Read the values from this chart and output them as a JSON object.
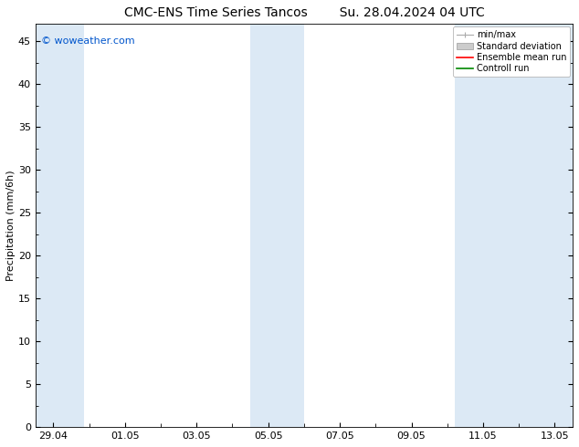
{
  "title_left": "CMC-ENS Time Series Tancos",
  "title_right": "Su. 28.04.2024 04 UTC",
  "ylabel": "Precipitation (mm/6h)",
  "watermark": "© woweather.com",
  "watermark_color": "#0055cc",
  "background_color": "#ffffff",
  "plot_bg_color": "#ffffff",
  "ylim": [
    0,
    47
  ],
  "yticks": [
    0,
    5,
    10,
    15,
    20,
    25,
    30,
    35,
    40,
    45
  ],
  "xtick_labels": [
    "29.04",
    "01.05",
    "03.05",
    "05.05",
    "07.05",
    "09.05",
    "11.05",
    "13.05"
  ],
  "xtick_positions": [
    0,
    2,
    4,
    6,
    8,
    10,
    12,
    14
  ],
  "xlim": [
    -0.5,
    14.5
  ],
  "shaded_bands": [
    {
      "x_start": -0.5,
      "x_end": 0.85,
      "color": "#dce9f5"
    },
    {
      "x_start": 5.5,
      "x_end": 7.0,
      "color": "#dce9f5"
    },
    {
      "x_start": 11.2,
      "x_end": 14.5,
      "color": "#dce9f5"
    }
  ],
  "legend_labels": [
    "min/max",
    "Standard deviation",
    "Ensemble mean run",
    "Controll run"
  ],
  "legend_colors": [
    "#aaaaaa",
    "#cccccc",
    "#ff0000",
    "#008800"
  ],
  "title_fontsize": 10,
  "label_fontsize": 8,
  "tick_fontsize": 8,
  "watermark_fontsize": 8,
  "legend_fontsize": 7
}
